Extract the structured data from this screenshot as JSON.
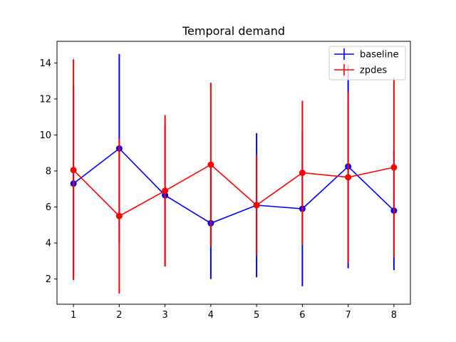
{
  "chart_data": {
    "type": "line",
    "title": "Temporal demand",
    "xlabel": "",
    "ylabel": "",
    "x": [
      1,
      2,
      3,
      4,
      5,
      6,
      7,
      8
    ],
    "xlim": [
      0.64,
      8.36
    ],
    "ylim": [
      0.6,
      15.2
    ],
    "xticks": [
      1,
      2,
      3,
      4,
      5,
      6,
      7,
      8
    ],
    "yticks": [
      2,
      4,
      6,
      8,
      10,
      12,
      14
    ],
    "grid": false,
    "legend_position": "top-right",
    "series": [
      {
        "name": "baseline",
        "color": "#0000ff",
        "values": [
          7.3,
          9.25,
          6.65,
          5.1,
          6.1,
          5.9,
          8.25,
          5.8
        ],
        "err_low": [
          1.95,
          4.05,
          2.7,
          2.0,
          2.1,
          1.6,
          2.6,
          2.5
        ],
        "err_high": [
          12.7,
          14.5,
          10.6,
          8.2,
          10.1,
          10.2,
          13.9,
          9.1
        ]
      },
      {
        "name": "zpdes",
        "color": "#ff0000",
        "values": [
          8.05,
          5.5,
          6.9,
          8.35,
          6.1,
          7.9,
          7.65,
          8.2
        ],
        "err_low": [
          1.95,
          1.2,
          2.7,
          3.8,
          3.3,
          3.9,
          2.9,
          3.2
        ],
        "err_high": [
          14.2,
          9.8,
          11.1,
          12.9,
          8.9,
          11.9,
          12.4,
          13.2
        ]
      }
    ]
  }
}
